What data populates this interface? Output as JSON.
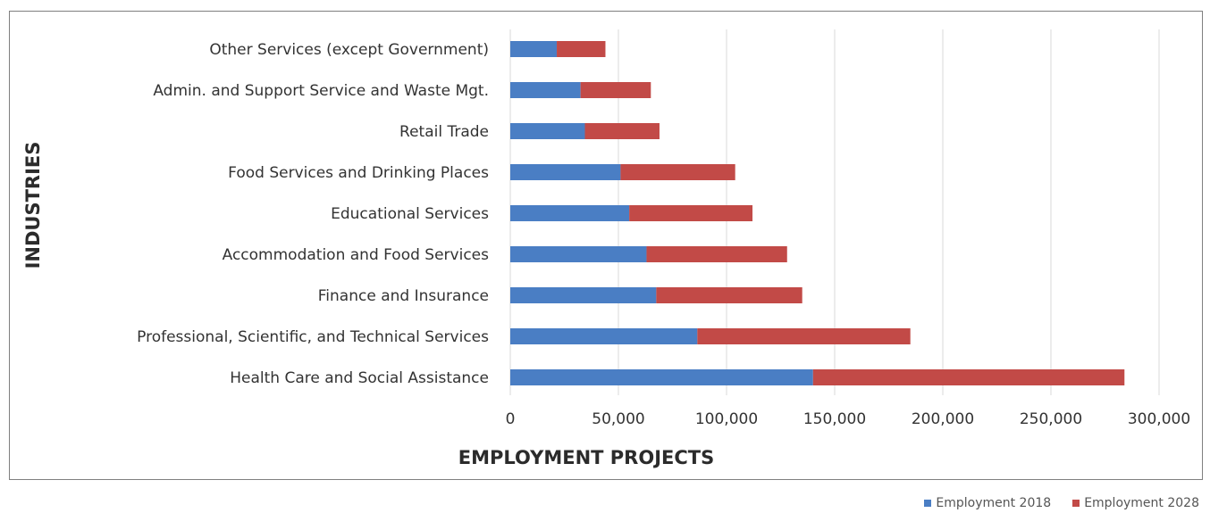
{
  "chart_data": {
    "type": "bar",
    "orientation": "horizontal",
    "stacked": true,
    "categories": [
      "Other Services (except Government)",
      "Admin. and Support  Service and Waste Mgt.",
      "Retail Trade",
      "Food Services and Drinking Places",
      "Educational Services",
      "Accommodation and Food Services",
      "Finance and Insurance",
      "Professional, Scientific, and Technical Services",
      "Health Care and Social Assistance"
    ],
    "series": [
      {
        "name": "Employment 2018",
        "color": "#4a7ec4",
        "values": [
          21500,
          32500,
          34500,
          51000,
          55000,
          63000,
          67500,
          86500,
          140000
        ]
      },
      {
        "name": "Employment 2028",
        "color": "#c24a47",
        "values": [
          22500,
          32500,
          34500,
          53000,
          57000,
          65000,
          67500,
          98500,
          144000
        ]
      }
    ],
    "xticks": [
      "0",
      "50,000",
      "100,000",
      "150,000",
      "200,000",
      "250,000",
      "300,000"
    ],
    "xlim": [
      0,
      300000
    ],
    "xlabel": "EMPLOYMENT PROJECTS",
    "ylabel": "INDUSTRIES",
    "grid": "vertical",
    "legend_position": "bottom-right"
  }
}
